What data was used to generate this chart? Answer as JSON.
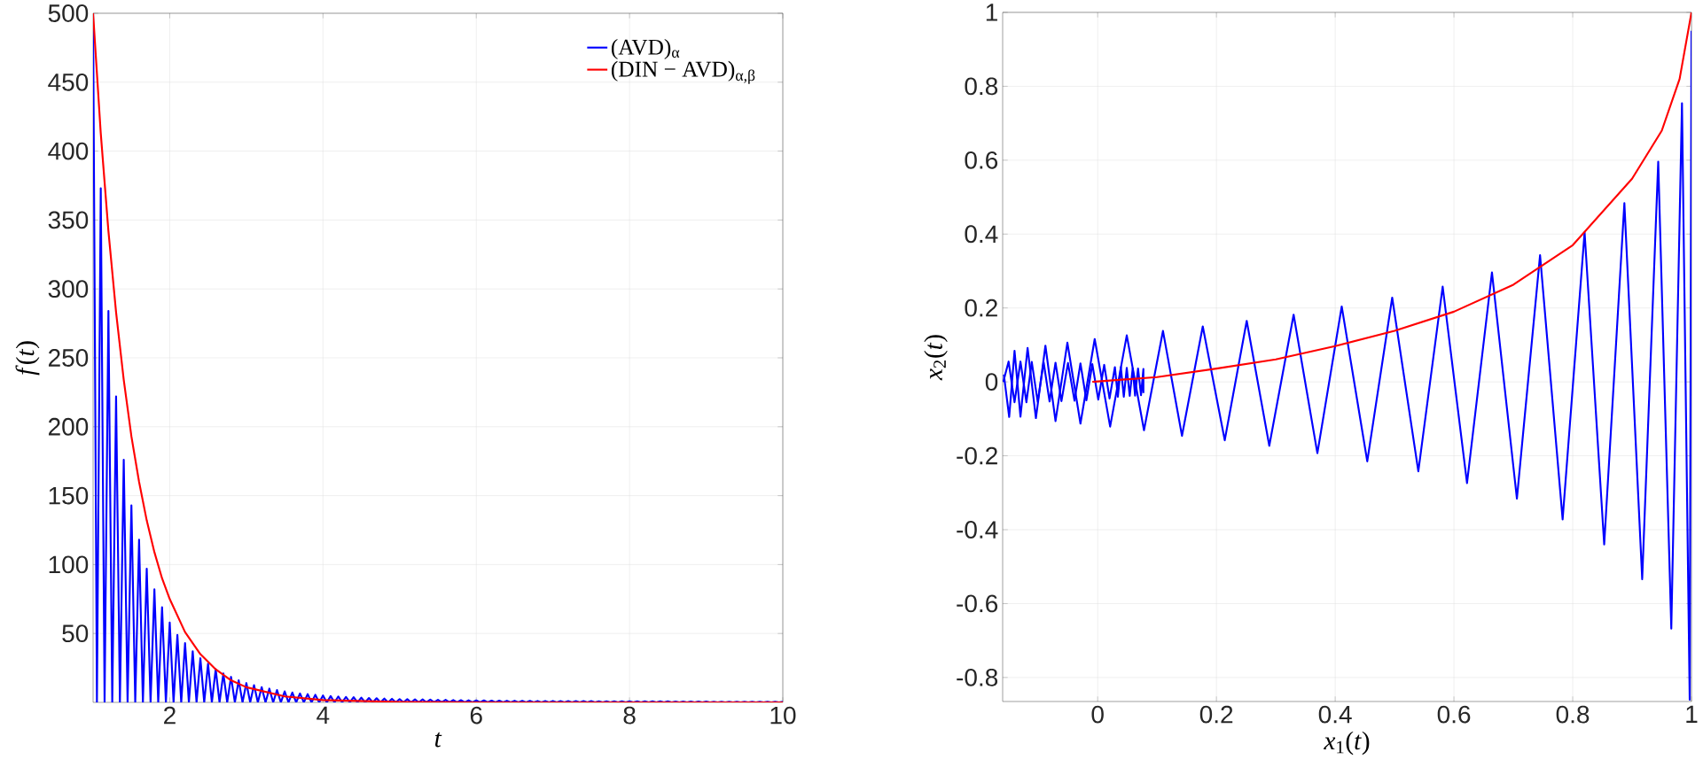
{
  "chart_data": [
    {
      "type": "line",
      "xlabel": "*t*",
      "ylabel": "*f*(*t*)",
      "xlim": [
        1,
        10
      ],
      "ylim": [
        0,
        500
      ],
      "xticks": [
        2,
        4,
        6,
        8,
        10
      ],
      "yticks": [
        50,
        100,
        150,
        200,
        250,
        300,
        350,
        400,
        450,
        500
      ],
      "grid": true,
      "legend": "top right",
      "series": [
        {
          "name": "(AVD)$_{α}$",
          "color": "#0000ff",
          "x": [
            1,
            1.05,
            1.1,
            1.15,
            1.2,
            1.25,
            1.3,
            1.35,
            1.4,
            1.45,
            1.5,
            1.55,
            1.6,
            1.65,
            1.7,
            1.75,
            1.8,
            1.85,
            1.9,
            1.95,
            2,
            2.05,
            2.1,
            2.15,
            2.2,
            2.25,
            2.3,
            2.35,
            2.4,
            2.45,
            2.5,
            2.55,
            2.6,
            2.65,
            2.7,
            2.75,
            2.8,
            2.85,
            2.9,
            2.95,
            3,
            3.05,
            3.1,
            3.15,
            3.2,
            3.25,
            3.3,
            3.35,
            3.4,
            3.45,
            3.5,
            3.55,
            3.6,
            3.65,
            3.7,
            3.75,
            3.8,
            3.85,
            3.9,
            3.95,
            4,
            4.05,
            4.1,
            4.15,
            4.2,
            4.25,
            4.3,
            4.35,
            4.4,
            4.45,
            4.5,
            4.55,
            4.6,
            4.65,
            4.7,
            4.75,
            4.8,
            4.85,
            4.9,
            4.95,
            5,
            5.05,
            5.1,
            5.15,
            5.2,
            5.25,
            5.3,
            5.35,
            5.4,
            5.45,
            5.5,
            5.55,
            5.6,
            5.65,
            5.7,
            5.75,
            5.8,
            5.85,
            5.9,
            5.95,
            6,
            6.05,
            6.1,
            6.15,
            6.2,
            6.25,
            6.3,
            6.35,
            6.4,
            6.45,
            6.5,
            6.55,
            6.6,
            6.65,
            6.7,
            6.75,
            6.8,
            6.85,
            6.9,
            6.95,
            7,
            7.05,
            7.1,
            7.15,
            7.2,
            7.25,
            7.3,
            7.35,
            7.4,
            7.45,
            7.5,
            7.55,
            7.6,
            7.65,
            7.7,
            7.75,
            7.8,
            7.85,
            7.9,
            7.95,
            8,
            8.05,
            8.1,
            8.15,
            8.2,
            8.25,
            8.3,
            8.35,
            8.4,
            8.45,
            8.5,
            8.55,
            8.6,
            8.65,
            8.7,
            8.75,
            8.8,
            8.85,
            8.9,
            8.95,
            9,
            9.05,
            9.1,
            9.15,
            9.2,
            9.25,
            9.3,
            9.35,
            9.4,
            9.45,
            9.5,
            9.55,
            9.6,
            9.65,
            9.7,
            9.75,
            9.8,
            9.85,
            9.9,
            9.95,
            10
          ],
          "values": [
            500,
            0,
            373,
            0,
            284,
            0,
            222,
            0,
            176,
            0,
            143,
            0,
            118,
            0,
            97,
            0,
            82,
            0,
            69,
            0,
            58,
            0,
            49,
            0,
            43,
            0,
            37,
            0,
            32,
            0,
            28,
            0,
            24,
            0,
            21,
            0,
            18.5,
            0,
            16,
            0,
            14,
            0,
            12.5,
            0,
            11,
            0,
            10,
            0,
            9,
            0,
            8,
            0,
            7.2,
            0,
            6.5,
            0,
            6,
            0,
            5.5,
            0,
            5,
            0,
            4.6,
            0,
            4.3,
            0,
            4,
            0,
            3.7,
            0,
            3.4,
            0,
            3.2,
            0,
            3,
            0,
            2.8,
            0,
            2.6,
            0,
            2.4,
            0,
            2.3,
            0,
            2.2,
            0,
            2.1,
            0,
            2,
            0,
            1.9,
            0,
            1.8,
            0,
            1.7,
            0,
            1.6,
            0,
            1.5,
            0,
            1.4,
            0,
            1.4,
            0,
            1.3,
            0,
            1.3,
            0,
            1.2,
            0,
            1.2,
            0,
            1.1,
            0,
            1.1,
            0,
            1,
            0,
            1,
            0,
            1,
            0,
            0.9,
            0,
            0.9,
            0,
            0.9,
            0,
            0.9,
            0,
            0.9,
            0,
            0.8,
            0,
            0.8,
            0,
            0.8,
            0,
            0.8,
            0,
            0.8,
            0,
            0.7,
            0,
            0.7,
            0,
            0.7,
            0,
            0.7,
            0,
            0.7,
            0,
            0.6,
            0,
            0.6,
            0,
            0.6,
            0,
            0.6,
            0,
            0.6,
            0,
            0.5,
            0,
            0.5,
            0,
            0.5,
            0,
            0.5,
            0,
            0.5,
            0,
            0.5,
            0,
            0.5,
            0,
            0.5,
            0,
            0.5,
            0,
            0.5
          ]
        },
        {
          "name": "(DIN − AVD)$_{α,β}$",
          "color": "#ff0000",
          "x": [
            1,
            1.1,
            1.2,
            1.3,
            1.4,
            1.5,
            1.6,
            1.7,
            1.8,
            1.9,
            2,
            2.2,
            2.4,
            2.6,
            2.8,
            3,
            3.5,
            4,
            5,
            6,
            8,
            10
          ],
          "values": [
            500,
            413,
            342,
            283,
            234,
            193,
            160,
            132,
            109,
            90,
            75,
            51,
            35,
            24,
            16,
            11,
            4.3,
            1.7,
            0.3,
            0,
            0,
            0
          ]
        }
      ]
    },
    {
      "type": "line",
      "xlabel": "*x*$_{1}$(*t*)",
      "ylabel": "*x*$_{2}$(*t*)",
      "xlim": [
        -0.16,
        1
      ],
      "ylim": [
        -0.865,
        1
      ],
      "xticks": [
        0,
        0.2,
        0.4,
        0.6,
        0.8,
        1
      ],
      "yticks": [
        -0.8,
        -0.6,
        -0.4,
        -0.2,
        0,
        0.2,
        0.4,
        0.6,
        0.8,
        1
      ],
      "grid": true,
      "series": [
        {
          "color": "#0000ff",
          "x": [
            1,
            0.997,
            0.984,
            0.966,
            0.944,
            0.917,
            0.887,
            0.853,
            0.82,
            0.783,
            0.745,
            0.706,
            0.664,
            0.622,
            0.581,
            0.54,
            0.496,
            0.454,
            0.411,
            0.37,
            0.33,
            0.289,
            0.251,
            0.214,
            0.177,
            0.142,
            0.11,
            0.078,
            0.049,
            0.021,
            -0.005,
            -0.029,
            -0.051,
            -0.071,
            -0.088,
            -0.104,
            -0.118,
            -0.13,
            -0.14,
            -0.149,
            -0.158
          ],
          "values": [
            0.95,
            -0.86,
            0.754,
            -0.668,
            0.596,
            -0.534,
            0.484,
            -0.44,
            0.405,
            -0.372,
            0.343,
            -0.316,
            0.296,
            -0.274,
            0.258,
            -0.242,
            0.228,
            -0.215,
            0.204,
            -0.193,
            0.182,
            -0.173,
            0.165,
            -0.158,
            0.15,
            -0.146,
            0.138,
            -0.131,
            0.126,
            -0.121,
            0.116,
            -0.113,
            0.106,
            -0.106,
            0.098,
            -0.098,
            0.092,
            -0.094,
            0.084,
            -0.095,
            0.02
          ]
        },
        {
          "color": "#0000ff",
          "x": [
            -0.159,
            -0.15,
            -0.14,
            -0.13,
            -0.12,
            -0.111,
            -0.101,
            -0.091,
            -0.081,
            -0.071,
            -0.061,
            -0.05,
            -0.039,
            -0.029,
            -0.019,
            -0.009,
            0.001,
            0.011,
            0.02,
            0.029,
            0.034,
            0.039,
            0.044,
            0.049,
            0.054,
            0.059,
            0.063,
            0.068,
            0.073,
            0.077,
            0.077
          ],
          "values": [
            0,
            0.055,
            -0.055,
            0.055,
            -0.055,
            0.054,
            -0.054,
            0.053,
            -0.053,
            0.052,
            -0.052,
            0.051,
            -0.051,
            0.05,
            -0.05,
            0.048,
            -0.048,
            0.046,
            -0.045,
            0.04,
            -0.04,
            0.04,
            -0.04,
            0.038,
            -0.038,
            0.037,
            -0.037,
            0.036,
            -0.036,
            0.035,
            -0.03
          ]
        },
        {
          "color": "#ff0000",
          "x": [
            -0.009,
            0.1,
            0.2,
            0.3,
            0.4,
            0.5,
            0.6,
            0.7,
            0.8,
            0.9,
            0.95,
            0.98,
            1
          ],
          "values": [
            0,
            0.013,
            0.036,
            0.061,
            0.097,
            0.138,
            0.19,
            0.263,
            0.37,
            0.55,
            0.68,
            0.82,
            1
          ]
        }
      ]
    }
  ]
}
